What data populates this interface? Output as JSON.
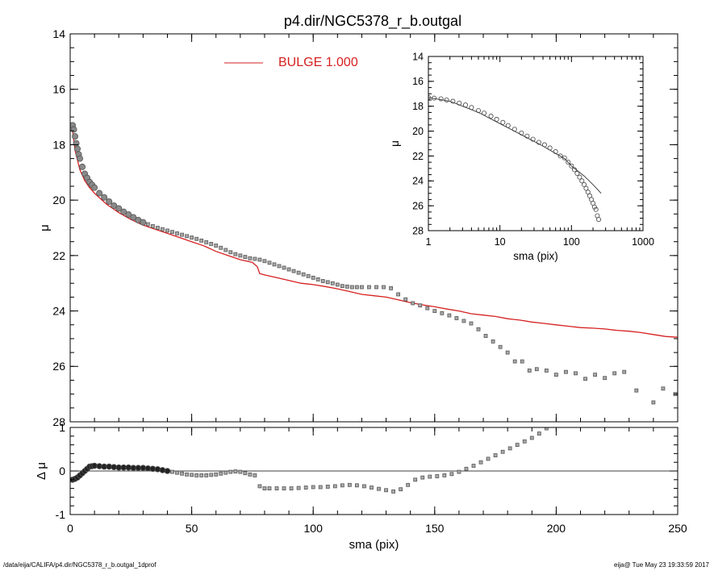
{
  "footer": {
    "left": "/data/eija/CALIFA/p4.dir/NGC5378_r_b.outgal_1dprof",
    "right": "eija@  Tue May 23 19:33:59 2017"
  },
  "colors": {
    "model": "#d62020",
    "data": "#555555",
    "axis": "#000000"
  },
  "chart_data": [
    {
      "id": "main",
      "type": "scatter",
      "title": "p4.dir/NGC5378_r_b.outgal",
      "xlabel": "",
      "ylabel": "μ",
      "xlim": [
        0,
        250
      ],
      "ylim": [
        28,
        14
      ],
      "y_inverted": true,
      "xticks": [
        0,
        50,
        100,
        150,
        200,
        250
      ],
      "yticks": [
        14,
        16,
        18,
        20,
        22,
        24,
        26,
        28
      ],
      "legend": {
        "label": "BULGE  1.000",
        "placement": "top-center"
      },
      "series": [
        {
          "name": "BULGE  1.000",
          "kind": "line",
          "x": [
            1,
            2,
            4,
            6,
            8,
            10,
            15,
            20,
            25,
            30,
            35,
            40,
            45,
            50,
            55,
            60,
            65,
            70,
            75,
            77,
            78,
            80,
            85,
            90,
            95,
            100,
            105,
            110,
            115,
            120,
            125,
            130,
            135,
            140,
            145,
            150,
            155,
            160,
            165,
            170,
            175,
            180,
            185,
            190,
            195,
            200,
            205,
            210,
            215,
            220,
            225,
            230,
            235,
            240,
            245,
            250
          ],
          "y": [
            17.5,
            18.2,
            18.9,
            19.3,
            19.55,
            19.75,
            20.15,
            20.45,
            20.7,
            20.9,
            21.05,
            21.2,
            21.35,
            21.5,
            21.65,
            21.85,
            22.0,
            22.15,
            22.25,
            22.4,
            22.65,
            22.7,
            22.8,
            22.9,
            23.0,
            23.05,
            23.12,
            23.2,
            23.3,
            23.4,
            23.45,
            23.5,
            23.6,
            23.7,
            23.78,
            23.85,
            23.93,
            24.0,
            24.1,
            24.15,
            24.2,
            24.28,
            24.33,
            24.4,
            24.45,
            24.5,
            24.55,
            24.6,
            24.62,
            24.65,
            24.7,
            24.73,
            24.78,
            24.85,
            24.92,
            24.95
          ]
        },
        {
          "name": "",
          "kind": "points",
          "x": [
            1,
            1.5,
            2,
            2.5,
            3,
            3.5,
            4,
            5,
            6,
            7,
            8,
            9,
            10,
            12,
            14,
            16,
            18,
            20,
            22,
            24,
            26,
            28,
            30,
            32,
            34,
            36,
            38,
            40,
            42,
            44,
            46,
            48,
            50,
            52,
            54,
            56,
            58,
            60,
            62,
            64,
            66,
            68,
            70,
            72,
            74,
            76,
            78,
            80,
            82,
            84,
            86,
            88,
            90,
            92,
            94,
            96,
            98,
            100,
            102,
            104,
            106,
            108,
            110,
            112,
            114,
            116,
            118,
            120,
            123,
            126,
            129,
            132,
            135,
            138,
            141,
            144,
            147,
            150,
            153,
            156,
            159,
            162,
            165,
            168,
            171,
            174,
            177,
            180,
            183,
            186,
            189,
            192,
            196,
            200,
            204,
            208,
            212,
            216,
            220,
            224,
            228,
            233,
            240,
            244,
            249
          ],
          "y": [
            17.3,
            17.45,
            17.7,
            17.95,
            18.15,
            18.35,
            18.5,
            18.8,
            19.05,
            19.2,
            19.35,
            19.45,
            19.55,
            19.75,
            19.9,
            20.05,
            20.2,
            20.3,
            20.42,
            20.52,
            20.62,
            20.72,
            20.8,
            20.87,
            20.94,
            21.0,
            21.05,
            21.1,
            21.15,
            21.2,
            21.25,
            21.3,
            21.35,
            21.4,
            21.46,
            21.52,
            21.58,
            21.64,
            21.72,
            21.8,
            21.88,
            21.95,
            22.0,
            22.05,
            22.1,
            22.12,
            22.15,
            22.2,
            22.26,
            22.32,
            22.38,
            22.44,
            22.5,
            22.56,
            22.62,
            22.68,
            22.74,
            22.8,
            22.86,
            22.92,
            22.96,
            23.0,
            23.05,
            23.1,
            23.12,
            23.14,
            23.14,
            23.14,
            23.14,
            23.14,
            23.14,
            23.18,
            23.4,
            23.58,
            23.72,
            23.8,
            23.9,
            24.0,
            24.08,
            24.16,
            24.26,
            24.36,
            24.45,
            24.66,
            24.9,
            25.1,
            25.3,
            25.5,
            25.82,
            25.82,
            26.15,
            26.1,
            26.15,
            26.3,
            26.2,
            26.25,
            26.45,
            26.3,
            26.42,
            26.25,
            26.2,
            26.87,
            27.3,
            26.8,
            27.0
          ]
        }
      ]
    },
    {
      "id": "residual",
      "type": "scatter",
      "xlabel": "sma (pix)",
      "ylabel": "Δ μ",
      "xlim": [
        0,
        250
      ],
      "ylim": [
        -1,
        1
      ],
      "xticks": [
        0,
        50,
        100,
        150,
        200,
        250
      ],
      "yticks": [
        -1,
        0,
        1
      ],
      "zero_line": true,
      "series": [
        {
          "name": "",
          "kind": "points",
          "x": [
            1,
            2,
            3,
            4,
            5,
            6,
            7,
            8,
            9,
            10,
            12,
            14,
            16,
            18,
            20,
            22,
            24,
            26,
            28,
            30,
            32,
            34,
            36,
            38,
            40,
            42,
            44,
            46,
            48,
            50,
            52,
            54,
            56,
            58,
            60,
            62,
            64,
            66,
            68,
            70,
            72,
            74,
            76,
            78,
            80,
            82,
            85,
            88,
            91,
            94,
            97,
            100,
            103,
            106,
            109,
            112,
            115,
            118,
            121,
            124,
            127,
            130,
            133,
            136,
            139,
            142,
            145,
            148,
            151,
            154,
            157,
            160,
            163,
            166,
            169,
            172,
            175,
            178,
            181,
            184,
            187,
            190,
            193,
            196
          ],
          "y": [
            -0.2,
            -0.18,
            -0.15,
            -0.1,
            -0.05,
            0.0,
            0.05,
            0.1,
            0.11,
            0.12,
            0.11,
            0.1,
            0.1,
            0.09,
            0.08,
            0.08,
            0.08,
            0.07,
            0.07,
            0.07,
            0.06,
            0.05,
            0.04,
            0.02,
            0.0,
            -0.02,
            -0.04,
            -0.06,
            -0.08,
            -0.09,
            -0.1,
            -0.1,
            -0.1,
            -0.09,
            -0.08,
            -0.06,
            -0.04,
            -0.02,
            -0.01,
            -0.02,
            -0.05,
            -0.08,
            -0.1,
            -0.35,
            -0.4,
            -0.4,
            -0.4,
            -0.4,
            -0.4,
            -0.39,
            -0.38,
            -0.37,
            -0.37,
            -0.36,
            -0.35,
            -0.33,
            -0.32,
            -0.33,
            -0.35,
            -0.38,
            -0.41,
            -0.44,
            -0.47,
            -0.42,
            -0.32,
            -0.2,
            -0.15,
            -0.13,
            -0.12,
            -0.1,
            -0.07,
            -0.02,
            0.05,
            0.12,
            0.2,
            0.28,
            0.36,
            0.44,
            0.52,
            0.6,
            0.68,
            0.76,
            0.86,
            0.98
          ]
        }
      ]
    },
    {
      "id": "inset",
      "type": "scatter",
      "xlabel": "sma (pix)",
      "ylabel": "μ",
      "xscale": "log",
      "xlim": [
        1,
        1000
      ],
      "ylim": [
        28,
        14
      ],
      "y_inverted": true,
      "xticks": [
        1,
        10,
        100,
        1000
      ],
      "yticks": [
        14,
        16,
        18,
        20,
        22,
        24,
        26,
        28
      ],
      "series": [
        {
          "name": "",
          "kind": "line",
          "x": [
            1,
            2,
            5,
            10,
            20,
            40,
            60,
            80,
            100,
            150,
            200,
            260
          ],
          "y": [
            17.3,
            17.6,
            18.5,
            19.4,
            20.3,
            21.2,
            21.8,
            22.2,
            22.8,
            23.6,
            24.3,
            25.0
          ]
        },
        {
          "name": "",
          "kind": "points",
          "x": [
            1,
            1.2,
            1.5,
            1.8,
            2.2,
            2.7,
            3.3,
            4,
            5,
            6,
            7.5,
            9,
            11,
            13,
            16,
            20,
            24,
            29,
            35,
            42,
            50,
            60,
            70,
            80,
            90,
            100,
            110,
            120,
            130,
            140,
            150,
            160,
            170,
            180,
            190,
            200,
            210,
            220,
            230,
            240
          ],
          "y": [
            17.3,
            17.35,
            17.4,
            17.5,
            17.6,
            17.75,
            17.9,
            18.1,
            18.35,
            18.55,
            18.8,
            19.05,
            19.3,
            19.55,
            19.85,
            20.15,
            20.4,
            20.65,
            20.9,
            21.1,
            21.35,
            21.65,
            22.0,
            22.15,
            22.5,
            22.8,
            23.1,
            23.4,
            23.7,
            24.0,
            24.3,
            24.6,
            24.9,
            25.2,
            25.5,
            25.8,
            26.1,
            26.3,
            26.8,
            27.1
          ]
        }
      ]
    }
  ]
}
